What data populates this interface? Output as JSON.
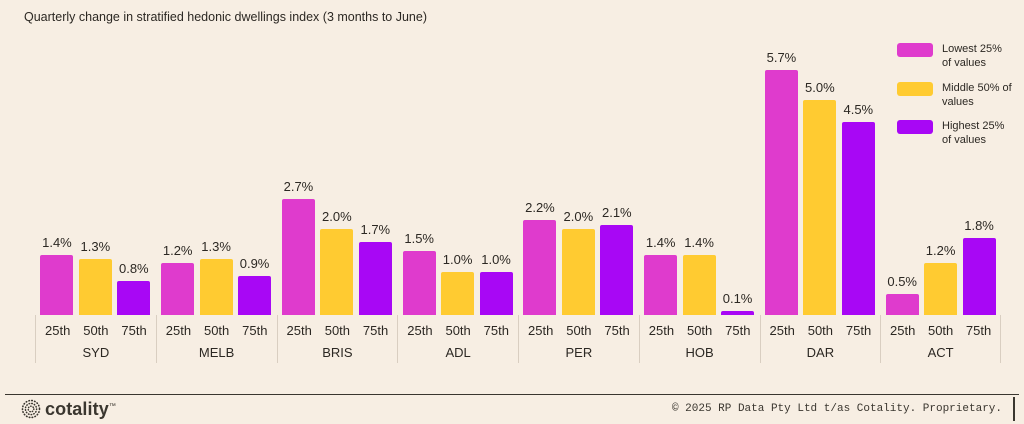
{
  "title": "Quarterly change in stratified hedonic dwellings index (3 months to June)",
  "chart_data": {
    "type": "bar",
    "title": "Quarterly change in stratified hedonic dwellings index (3 months to June)",
    "categories": [
      "SYD",
      "MELB",
      "BRIS",
      "ADL",
      "PER",
      "HOB",
      "DAR",
      "ACT"
    ],
    "subcategories": [
      "25th",
      "50th",
      "75th"
    ],
    "series": [
      {
        "name": "Lowest 25% of values",
        "color": "#df3bcd",
        "values": [
          1.4,
          1.2,
          2.7,
          1.5,
          2.2,
          1.4,
          5.7,
          0.5
        ]
      },
      {
        "name": "Middle 50% of values",
        "color": "#ffcb31",
        "values": [
          1.3,
          1.3,
          2.0,
          1.0,
          2.0,
          1.4,
          5.0,
          1.2
        ]
      },
      {
        "name": "Highest 25% of values",
        "color": "#a807f5",
        "values": [
          0.8,
          0.9,
          1.7,
          1.0,
          2.1,
          0.1,
          4.5,
          1.8
        ]
      }
    ],
    "value_suffix": "%",
    "ylim": [
      0,
      6
    ],
    "grid": false,
    "legend_position": "top-right"
  },
  "legend": [
    {
      "lines": "Lowest 25%\nof values"
    },
    {
      "lines": "Middle 50% of\nvalues"
    },
    {
      "lines": "Highest 25%\nof values"
    }
  ],
  "footer": {
    "brand": "cotality",
    "trademark": "™",
    "copyright": "© 2025 RP Data Pty Ltd t/as Cotality. Proprietary."
  },
  "colors": {
    "background": "#f7eee3",
    "text": "#2c2823",
    "separator": "#d9cec1",
    "lowest25": "#df3bcd",
    "middle50": "#ffcb31",
    "highest25": "#a807f5"
  }
}
